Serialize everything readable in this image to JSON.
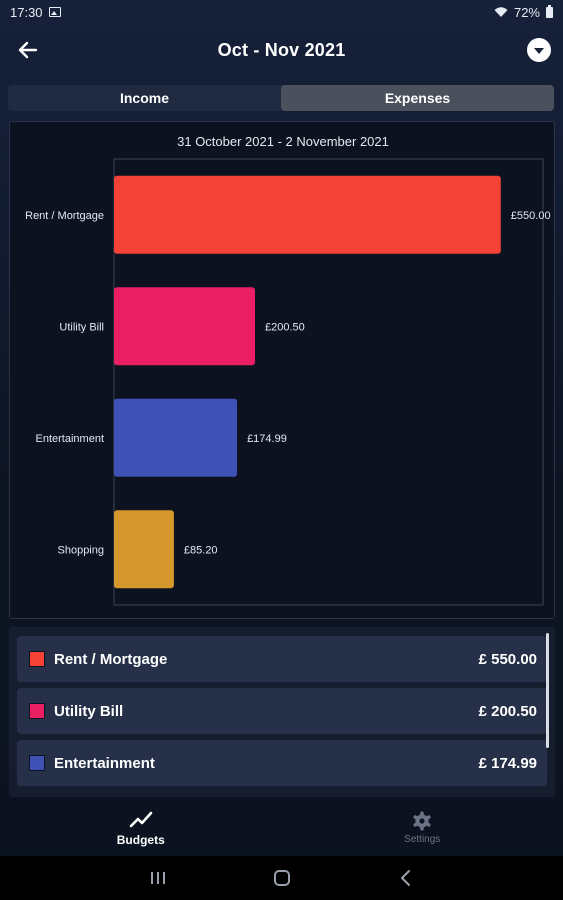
{
  "status_bar": {
    "time": "17:30",
    "battery": "72%"
  },
  "app_bar": {
    "title": "Oct - Nov 2021"
  },
  "tabs": [
    {
      "label": "Income",
      "selected": false
    },
    {
      "label": "Expenses",
      "selected": true
    }
  ],
  "chart_data": {
    "type": "bar",
    "orientation": "horizontal",
    "title": "31 October 2021 - 2 November 2021",
    "categories": [
      "Rent / Mortgage",
      "Utility Bill",
      "Entertainment",
      "Shopping"
    ],
    "values": [
      550.0,
      200.5,
      174.99,
      85.2
    ],
    "value_labels": [
      "£550.00",
      "£200.50",
      "£174.99",
      "£85.20"
    ],
    "colors": [
      "#f44336",
      "#e91e63",
      "#3f51b5",
      "#d4982c"
    ],
    "xlim": [
      0,
      610
    ],
    "grid": false,
    "xlabel": "",
    "ylabel": ""
  },
  "legend": {
    "items": [
      {
        "label": "Rent / Mortgage",
        "amount": "£ 550.00",
        "color": "#f44336"
      },
      {
        "label": "Utility Bill",
        "amount": "£ 200.50",
        "color": "#e91e63"
      },
      {
        "label": "Entertainment",
        "amount": "£ 174.99",
        "color": "#3f51b5"
      }
    ]
  },
  "bottom_nav": {
    "items": [
      {
        "label": "Budgets",
        "icon": "trend-line-icon",
        "active": true
      },
      {
        "label": "Settings",
        "icon": "gear-icon",
        "active": false
      }
    ]
  },
  "system_nav": {
    "icons": [
      "recents-icon",
      "home-icon",
      "back-icon"
    ]
  }
}
